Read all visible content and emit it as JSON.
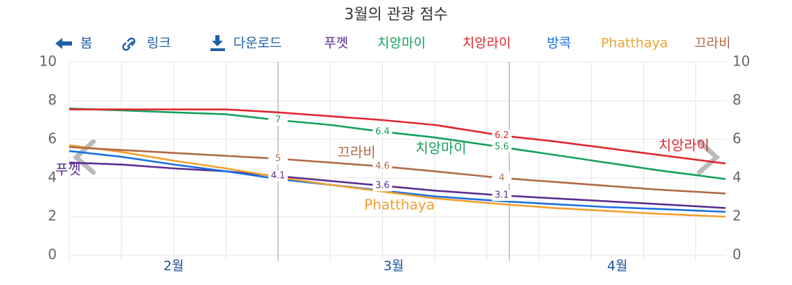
{
  "chart_data": {
    "type": "line",
    "title": "3월의 관광 점수",
    "toolbar": [
      "봄",
      "링크",
      "다운로드"
    ],
    "x": [
      0,
      7,
      14,
      21,
      28,
      35,
      42,
      49,
      58,
      65,
      72,
      79,
      88
    ],
    "xlim": [
      0,
      88
    ],
    "xticks": [
      {
        "value": 14,
        "label": "2월"
      },
      {
        "value": 43.5,
        "label": "3월"
      },
      {
        "value": 73.5,
        "label": "4월"
      }
    ],
    "xgrid": [
      0,
      7,
      14,
      21,
      35,
      42,
      49,
      56,
      63,
      70,
      77,
      84
    ],
    "month_boundaries": [
      28,
      59
    ],
    "ylim": [
      0,
      10
    ],
    "yticks": [
      0,
      2,
      4,
      6,
      8,
      10
    ],
    "grid": true,
    "series": [
      {
        "name": "푸껫",
        "color": "#5c2d91",
        "values": [
          4.8,
          4.7,
          4.5,
          4.35,
          4.1,
          3.85,
          3.6,
          3.35,
          3.1,
          2.95,
          2.8,
          2.65,
          2.45
        ],
        "labeled": [
          4,
          6,
          8
        ]
      },
      {
        "name": "치앙마이",
        "color": "#13a05c",
        "values": [
          7.6,
          7.5,
          7.4,
          7.3,
          7.0,
          6.75,
          6.4,
          6.1,
          5.6,
          5.2,
          4.8,
          4.4,
          3.95
        ],
        "labeled": [
          4,
          6,
          8
        ]
      },
      {
        "name": "치앙라이",
        "color": "#e0262d",
        "values": [
          7.55,
          7.55,
          7.55,
          7.55,
          7.4,
          7.2,
          7.0,
          6.75,
          6.2,
          5.9,
          5.55,
          5.2,
          4.75
        ],
        "labeled": [
          8
        ]
      },
      {
        "name": "방콕",
        "color": "#1a6fe0",
        "values": [
          5.4,
          5.1,
          4.7,
          4.35,
          3.95,
          3.65,
          3.35,
          3.05,
          2.8,
          2.65,
          2.5,
          2.4,
          2.25
        ],
        "labeled": []
      },
      {
        "name": "Phatthaya",
        "color": "#f0a030",
        "values": [
          5.7,
          5.35,
          4.9,
          4.5,
          4.05,
          3.65,
          3.3,
          2.95,
          2.65,
          2.45,
          2.3,
          2.15,
          2.0
        ],
        "labeled": []
      },
      {
        "name": "끄라비",
        "color": "#b06a45",
        "values": [
          5.6,
          5.45,
          5.3,
          5.15,
          5.0,
          4.8,
          4.6,
          4.35,
          4.0,
          3.8,
          3.6,
          3.4,
          3.2
        ],
        "labeled": [
          4,
          6,
          8
        ]
      }
    ]
  }
}
